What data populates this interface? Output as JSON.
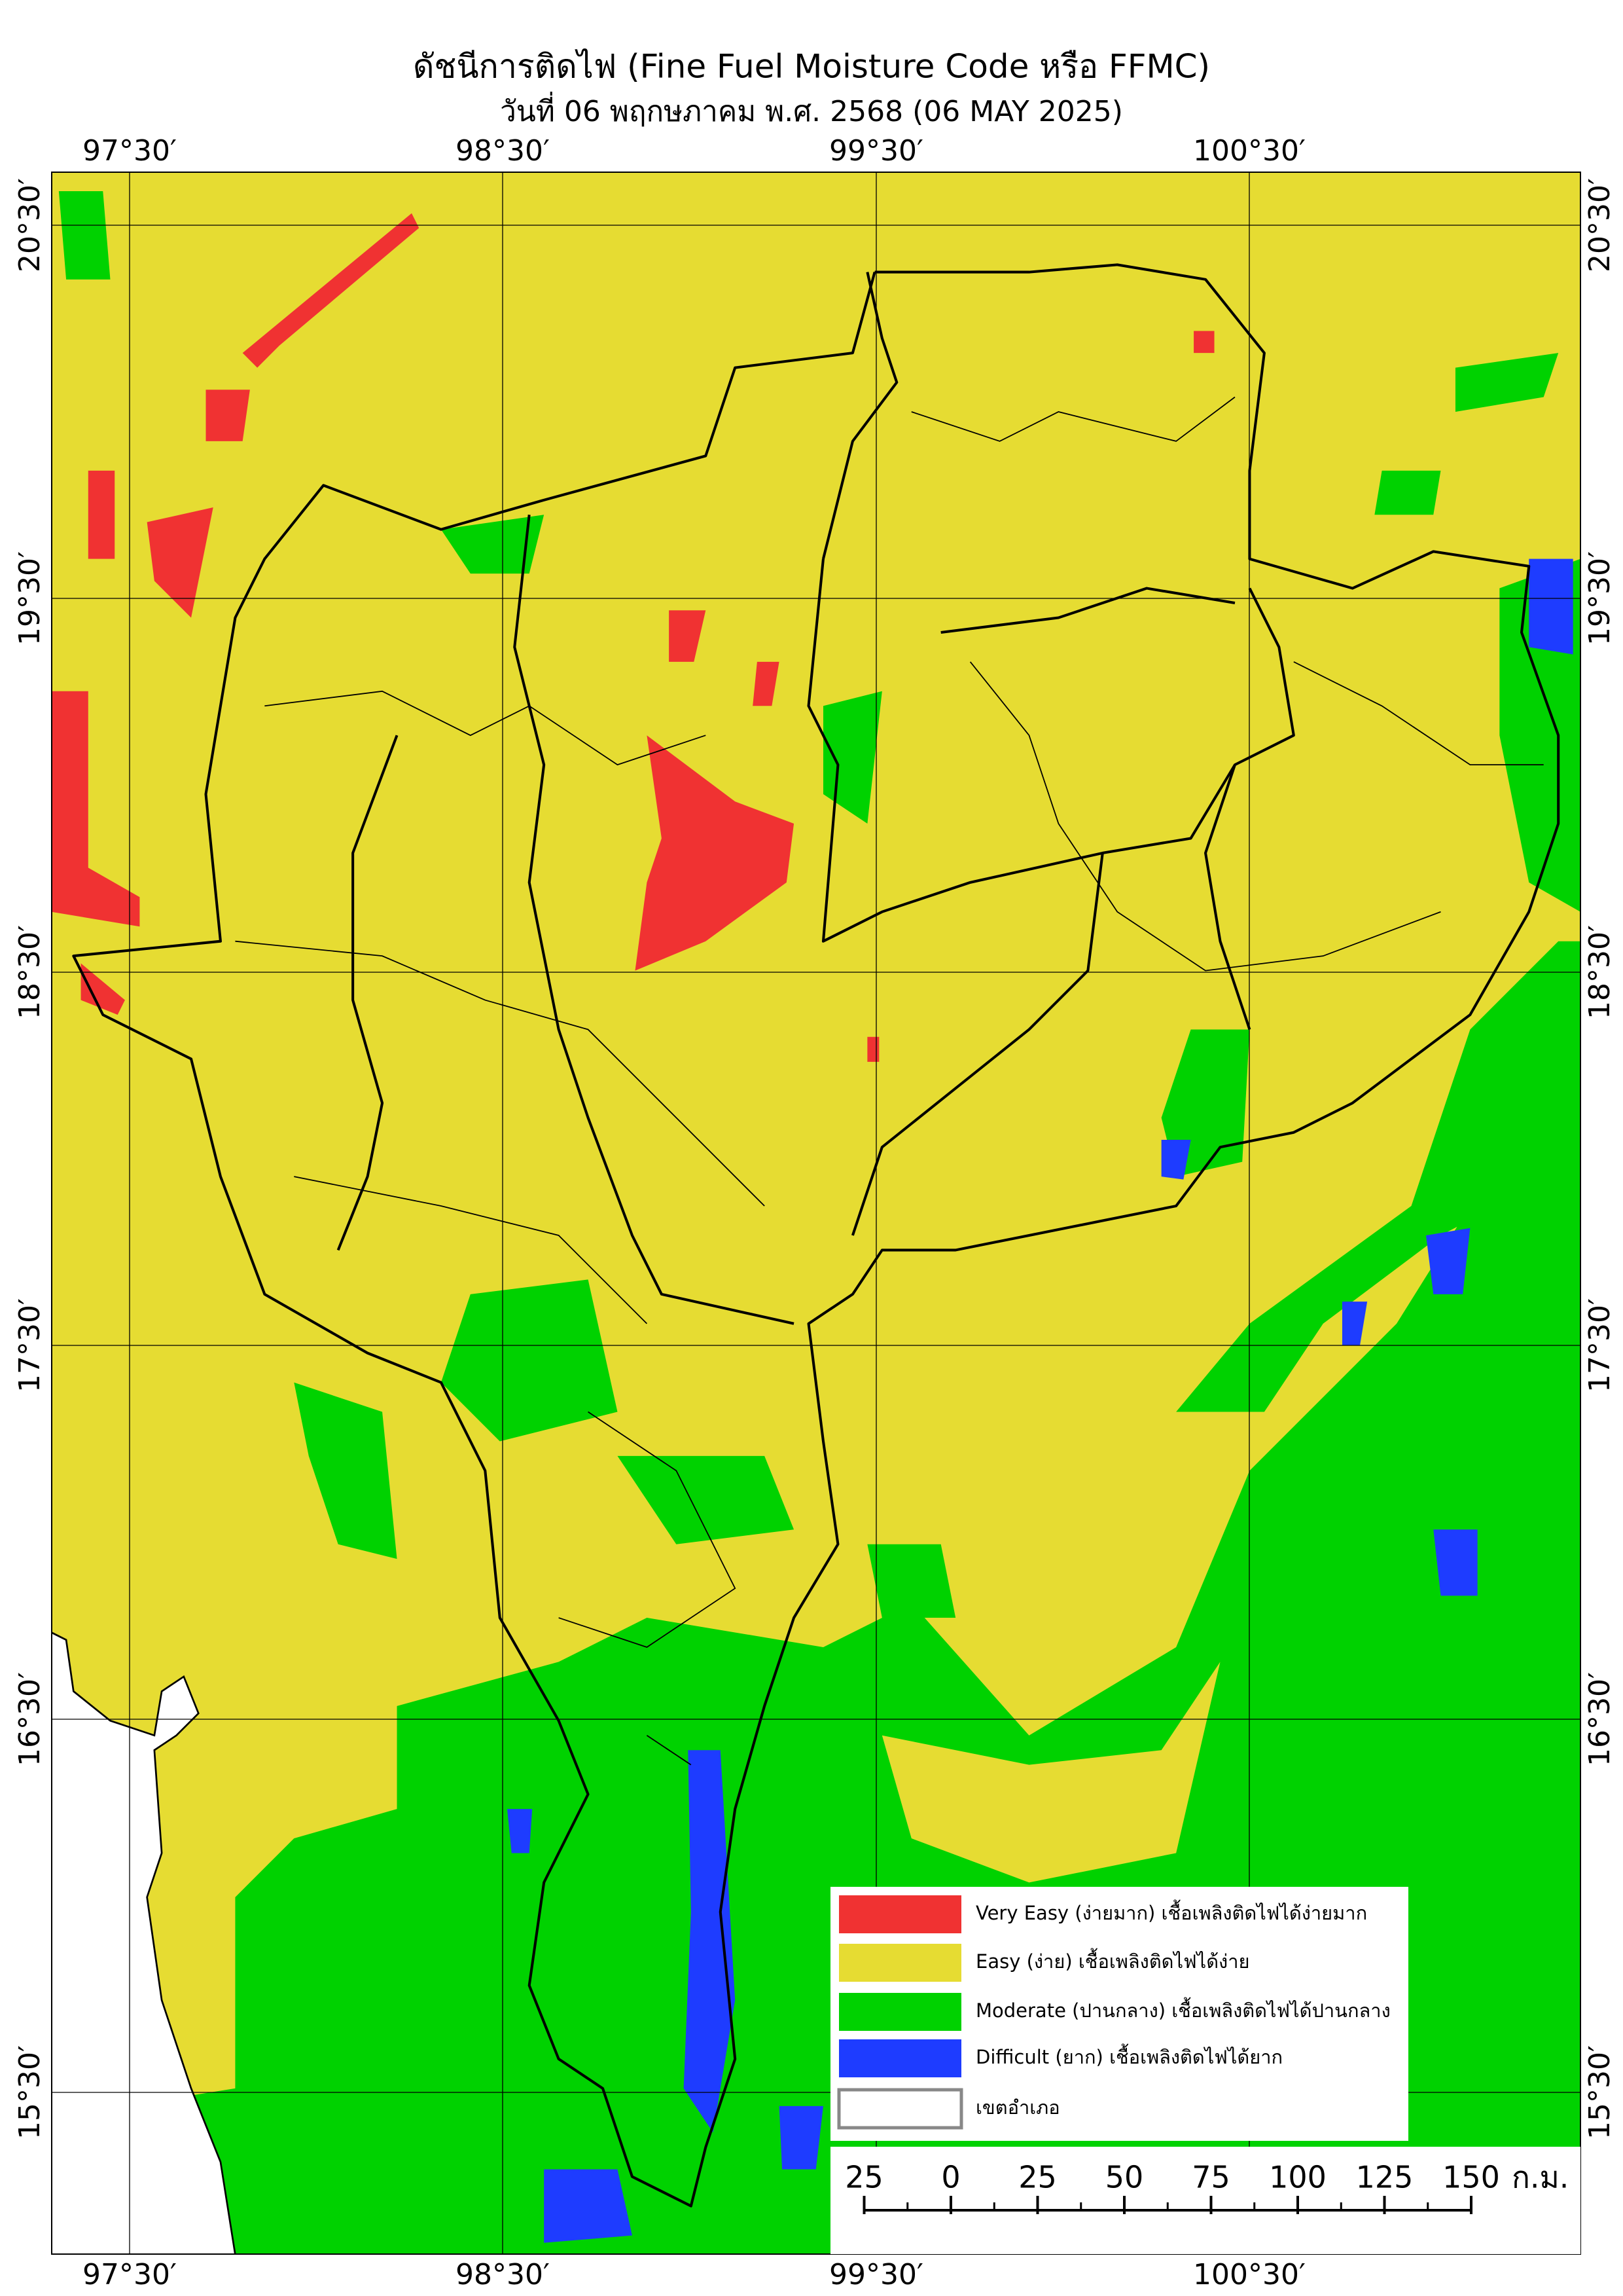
{
  "title": "ดัชนีการติดไฟ (Fine Fuel Moisture Code หรือ FFMC)",
  "subtitle": "วันที่ 06 พฤกษภาคม พ.ศ. 2568 (06 MAY 2025)",
  "map": {
    "lon_labels": [
      "97°30′",
      "98°30′",
      "99°30′",
      "100°30′"
    ],
    "lat_labels": [
      "20°30′",
      "19°30′",
      "18°30′",
      "17°30′",
      "16°30′",
      "15°30′"
    ]
  },
  "legend": [
    {
      "label": "Very Easy (ง่ายมาก) เชื้อเพลิงติดไฟได้ง่ายมาก",
      "color": "#f03232"
    },
    {
      "label": "Easy (ง่าย) เชื้อเพลิงติดไฟได้ง่าย",
      "color": "#e6dc32"
    },
    {
      "label": "Moderate (ปานกลาง) เชื้อเพลิงติดไฟได้ปานกลาง",
      "color": "#00d200"
    },
    {
      "label": "Difficult (ยาก) เชื้อเพลิงติดไฟได้ยาก",
      "color": "#1e3cff"
    },
    {
      "label": "เขตอำเภอ",
      "color": "#ffffff"
    }
  ],
  "scale": {
    "ticks": [
      {
        "value": -25,
        "label": "25"
      },
      0,
      25,
      50,
      75,
      100,
      125,
      150
    ],
    "unit": "ก.ม."
  }
}
